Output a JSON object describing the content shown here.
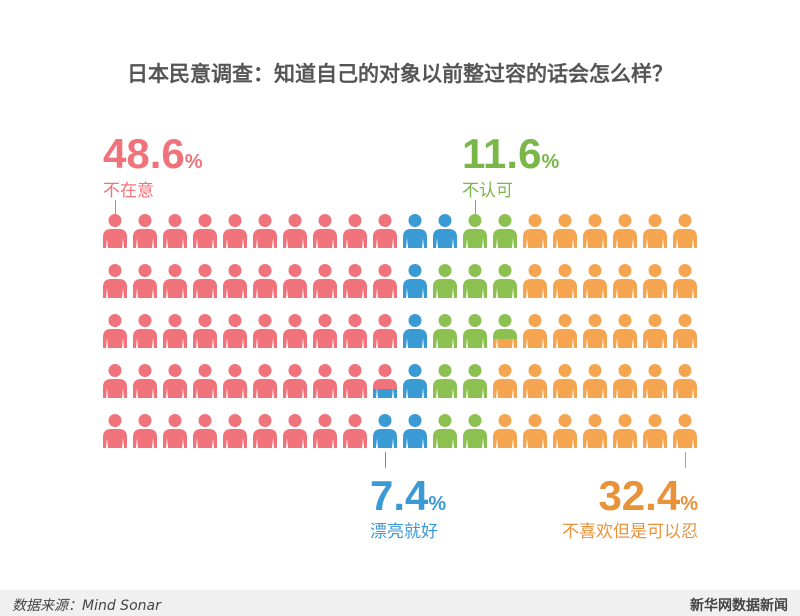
{
  "title": "日本民意调查：知道自己的对象以前整过容的话会怎么样？",
  "chart_data": {
    "type": "pictograph",
    "title": "日本民意调查：知道自己的对象以前整过容的话会怎么样？",
    "total_icons": 100,
    "columns": 20,
    "rows": 5,
    "fill_order": "column-major",
    "series": [
      {
        "name": "不在意",
        "value": 48.6,
        "pct_label": "48.6",
        "color": "#f0727a"
      },
      {
        "name": "漂亮就好",
        "value": 7.4,
        "pct_label": "7.4",
        "color": "#3a9ad3"
      },
      {
        "name": "不认可",
        "value": 11.6,
        "pct_label": "11.6",
        "color": "#8cc152"
      },
      {
        "name": "不喜欢但是可以忍",
        "value": 32.4,
        "pct_label": "32.4",
        "color": "#f5a54f"
      }
    ],
    "unit": "%"
  },
  "footer": {
    "source": "数据来源：Mind Sonar",
    "brand": "新华网数据新闻"
  }
}
